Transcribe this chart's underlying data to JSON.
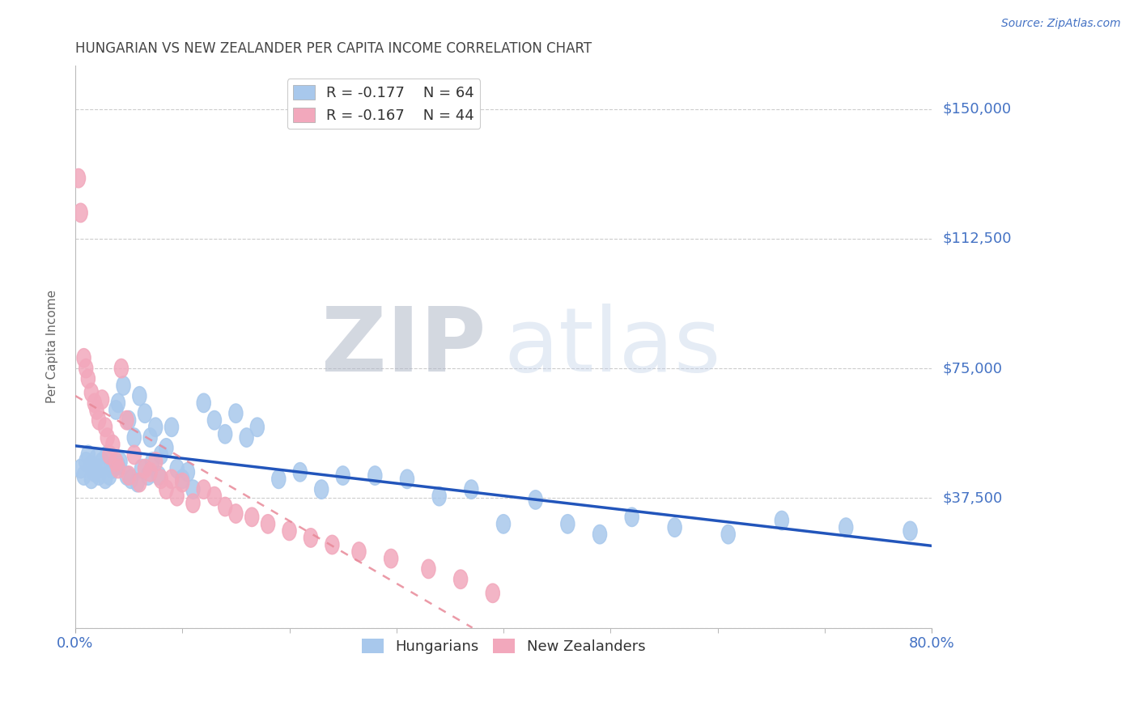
{
  "title": "HUNGARIAN VS NEW ZEALANDER PER CAPITA INCOME CORRELATION CHART",
  "source": "Source: ZipAtlas.com",
  "ylabel": "Per Capita Income",
  "xlim": [
    0.0,
    0.8
  ],
  "ylim": [
    0,
    162500
  ],
  "yticks": [
    0,
    37500,
    75000,
    112500,
    150000
  ],
  "ytick_labels": [
    "",
    "$37,500",
    "$75,000",
    "$112,500",
    "$150,000"
  ],
  "xtick_labels_show": [
    "0.0%",
    "80.0%"
  ],
  "xticks_show": [
    0.0,
    0.8
  ],
  "xticks_minor": [
    0.1,
    0.2,
    0.3,
    0.4,
    0.5,
    0.6,
    0.7
  ],
  "legend1_label": "R = -0.177    N = 64",
  "legend2_label": "R = -0.167    N = 44",
  "background_color": "#ffffff",
  "grid_color": "#cccccc",
  "blue_color": "#A8C8EC",
  "pink_color": "#F2A8BC",
  "blue_line_color": "#2255BB",
  "pink_line_color": "#E88898",
  "axis_label_color": "#4472C4",
  "axis_tick_color": "#4472C4",
  "title_color": "#444444",
  "hungarians_x": [
    0.005,
    0.008,
    0.01,
    0.012,
    0.015,
    0.015,
    0.018,
    0.02,
    0.022,
    0.022,
    0.025,
    0.028,
    0.03,
    0.032,
    0.035,
    0.038,
    0.04,
    0.04,
    0.042,
    0.045,
    0.048,
    0.05,
    0.052,
    0.055,
    0.058,
    0.06,
    0.062,
    0.065,
    0.068,
    0.07,
    0.072,
    0.075,
    0.078,
    0.08,
    0.085,
    0.09,
    0.095,
    0.1,
    0.105,
    0.11,
    0.12,
    0.13,
    0.14,
    0.15,
    0.16,
    0.17,
    0.19,
    0.21,
    0.23,
    0.25,
    0.28,
    0.31,
    0.34,
    0.37,
    0.4,
    0.43,
    0.46,
    0.49,
    0.52,
    0.56,
    0.61,
    0.66,
    0.72,
    0.78
  ],
  "hungarians_y": [
    46000,
    44000,
    48000,
    50000,
    43000,
    47000,
    45000,
    49000,
    44000,
    46000,
    48000,
    43000,
    50000,
    44000,
    46000,
    63000,
    47000,
    65000,
    48000,
    70000,
    44000,
    60000,
    43000,
    55000,
    42000,
    67000,
    46000,
    62000,
    44000,
    55000,
    48000,
    58000,
    44000,
    50000,
    52000,
    58000,
    46000,
    43000,
    45000,
    40000,
    65000,
    60000,
    56000,
    62000,
    55000,
    58000,
    43000,
    45000,
    40000,
    44000,
    44000,
    43000,
    38000,
    40000,
    30000,
    37000,
    30000,
    27000,
    32000,
    29000,
    27000,
    31000,
    29000,
    28000
  ],
  "nzlanders_x": [
    0.003,
    0.005,
    0.008,
    0.01,
    0.012,
    0.015,
    0.018,
    0.02,
    0.022,
    0.025,
    0.028,
    0.03,
    0.032,
    0.035,
    0.038,
    0.04,
    0.043,
    0.048,
    0.05,
    0.055,
    0.06,
    0.065,
    0.07,
    0.075,
    0.08,
    0.085,
    0.09,
    0.095,
    0.1,
    0.11,
    0.12,
    0.13,
    0.14,
    0.15,
    0.165,
    0.18,
    0.2,
    0.22,
    0.24,
    0.265,
    0.295,
    0.33,
    0.36,
    0.39
  ],
  "nzlanders_y": [
    130000,
    120000,
    78000,
    75000,
    72000,
    68000,
    65000,
    63000,
    60000,
    66000,
    58000,
    55000,
    50000,
    53000,
    48000,
    46000,
    75000,
    60000,
    44000,
    50000,
    42000,
    46000,
    45000,
    48000,
    43000,
    40000,
    43000,
    38000,
    42000,
    36000,
    40000,
    38000,
    35000,
    33000,
    32000,
    30000,
    28000,
    26000,
    24000,
    22000,
    20000,
    17000,
    14000,
    10000
  ]
}
